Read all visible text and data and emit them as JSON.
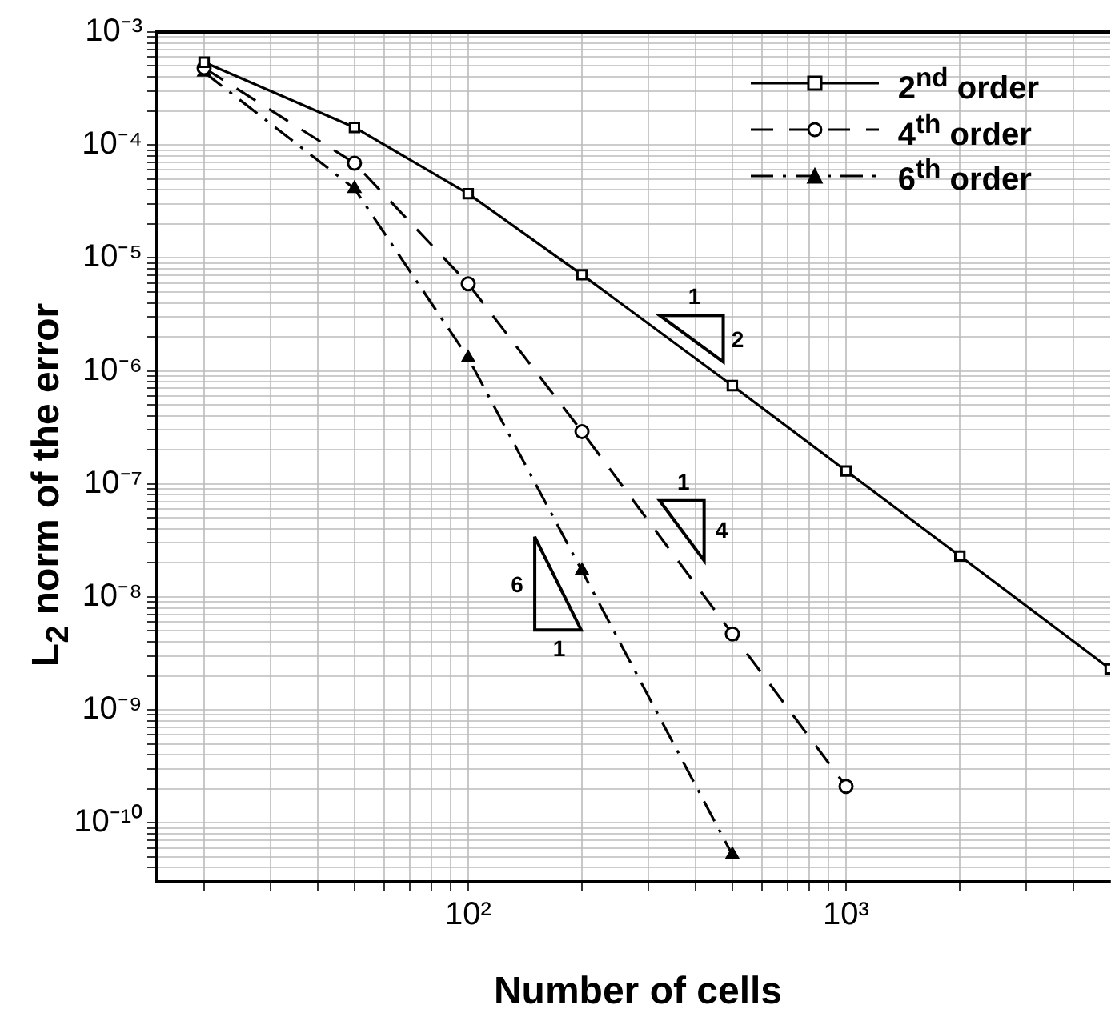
{
  "chart_data": {
    "type": "line",
    "xlabel": "Number of cells",
    "ylabel": "L$_{2}$ norm of the error",
    "x": [
      20,
      50,
      100,
      200,
      500,
      1000,
      2000,
      5000
    ],
    "series": [
      {
        "name": "2$^{nd}$ order",
        "color": "#000000",
        "marker": "square",
        "line_style": "solid",
        "values": [
          0.00054,
          0.000143,
          3.7e-05,
          7.1e-06,
          7.4e-07,
          1.3e-07,
          2.3e-08,
          2.3e-09
        ]
      },
      {
        "name": "4$^{th}$ order",
        "color": "#000000",
        "marker": "circle",
        "line_style": "dashed",
        "values": [
          0.00048,
          6.9e-05,
          5.9e-06,
          2.9e-07,
          4.7e-09,
          2.1e-10,
          null,
          null
        ]
      },
      {
        "name": "6$^{th}$ order",
        "color": "#000000",
        "marker": "triangle",
        "line_style": "dashdot",
        "values": [
          0.00044,
          4.1e-05,
          1.3e-06,
          1.7e-08,
          5.2e-11,
          null,
          null,
          null
        ]
      }
    ],
    "log": "xy",
    "grid": true,
    "legend": "top right",
    "xlim": [
      15,
      5000
    ],
    "ylim": [
      3e-11,
      0.001
    ],
    "xticks": [
      {
        "value": 20,
        "label": null
      },
      {
        "value": 30,
        "label": null
      },
      {
        "value": 40,
        "label": null
      },
      {
        "value": 50,
        "label": null
      },
      {
        "value": 60,
        "label": null
      },
      {
        "value": 70,
        "label": null
      },
      {
        "value": 80,
        "label": null
      },
      {
        "value": 90,
        "label": null
      },
      {
        "value": 100,
        "label": "10²"
      },
      {
        "value": 200,
        "label": null
      },
      {
        "value": 300,
        "label": null
      },
      {
        "value": 400,
        "label": null
      },
      {
        "value": 500,
        "label": null
      },
      {
        "value": 600,
        "label": null
      },
      {
        "value": 700,
        "label": null
      },
      {
        "value": 800,
        "label": null
      },
      {
        "value": 900,
        "label": null
      },
      {
        "value": 1000,
        "label": "10³"
      },
      {
        "value": 2000,
        "label": null
      },
      {
        "value": 3000,
        "label": null
      },
      {
        "value": 4000,
        "label": null
      }
    ],
    "yticks": [
      {
        "value": 4e-11,
        "label": null
      },
      {
        "value": 5e-11,
        "label": null
      },
      {
        "value": 6e-11,
        "label": null
      },
      {
        "value": 7e-11,
        "label": null
      },
      {
        "value": 8e-11,
        "label": null
      },
      {
        "value": 9e-11,
        "label": null
      },
      {
        "value": 1e-10,
        "label": "10⁻¹⁰"
      },
      {
        "value": 2e-10,
        "label": null
      },
      {
        "value": 3e-10,
        "label": null
      },
      {
        "value": 4e-10,
        "label": null
      },
      {
        "value": 5e-10,
        "label": null
      },
      {
        "value": 6e-10,
        "label": null
      },
      {
        "value": 7e-10,
        "label": null
      },
      {
        "value": 8e-10,
        "label": null
      },
      {
        "value": 9e-10,
        "label": null
      },
      {
        "value": 1e-09,
        "label": "10⁻⁹"
      },
      {
        "value": 2e-09,
        "label": null
      },
      {
        "value": 3e-09,
        "label": null
      },
      {
        "value": 4e-09,
        "label": null
      },
      {
        "value": 5e-09,
        "label": null
      },
      {
        "value": 6e-09,
        "label": null
      },
      {
        "value": 7e-09,
        "label": null
      },
      {
        "value": 8e-09,
        "label": null
      },
      {
        "value": 9e-09,
        "label": null
      },
      {
        "value": 1e-08,
        "label": "10⁻⁸"
      },
      {
        "value": 2e-08,
        "label": null
      },
      {
        "value": 3e-08,
        "label": null
      },
      {
        "value": 4e-08,
        "label": null
      },
      {
        "value": 5e-08,
        "label": null
      },
      {
        "value": 6e-08,
        "label": null
      },
      {
        "value": 7e-08,
        "label": null
      },
      {
        "value": 8e-08,
        "label": null
      },
      {
        "value": 9e-08,
        "label": null
      },
      {
        "value": 1e-07,
        "label": "10⁻⁷"
      },
      {
        "value": 2e-07,
        "label": null
      },
      {
        "value": 3e-07,
        "label": null
      },
      {
        "value": 4e-07,
        "label": null
      },
      {
        "value": 5e-07,
        "label": null
      },
      {
        "value": 6e-07,
        "label": null
      },
      {
        "value": 7e-07,
        "label": null
      },
      {
        "value": 8e-07,
        "label": null
      },
      {
        "value": 9e-07,
        "label": null
      },
      {
        "value": 1e-06,
        "label": "10⁻⁶"
      },
      {
        "value": 2e-06,
        "label": null
      },
      {
        "value": 3e-06,
        "label": null
      },
      {
        "value": 4e-06,
        "label": null
      },
      {
        "value": 5e-06,
        "label": null
      },
      {
        "value": 6e-06,
        "label": null
      },
      {
        "value": 7e-06,
        "label": null
      },
      {
        "value": 8e-06,
        "label": null
      },
      {
        "value": 9e-06,
        "label": null
      },
      {
        "value": 1e-05,
        "label": "10⁻⁵"
      },
      {
        "value": 2e-05,
        "label": null
      },
      {
        "value": 3e-05,
        "label": null
      },
      {
        "value": 4e-05,
        "label": null
      },
      {
        "value": 5e-05,
        "label": null
      },
      {
        "value": 6e-05,
        "label": null
      },
      {
        "value": 7e-05,
        "label": null
      },
      {
        "value": 8e-05,
        "label": null
      },
      {
        "value": 9e-05,
        "label": null
      },
      {
        "value": 0.0001,
        "label": "10⁻⁴"
      },
      {
        "value": 0.0002,
        "label": null
      },
      {
        "value": 0.0003,
        "label": null
      },
      {
        "value": 0.0004,
        "label": null
      },
      {
        "value": 0.0005,
        "label": null
      },
      {
        "value": 0.0006,
        "label": null
      },
      {
        "value": 0.0007,
        "label": null
      },
      {
        "value": 0.0008,
        "label": null
      },
      {
        "value": 0.0009,
        "label": null
      },
      {
        "value": 0.001,
        "label": "10⁻³"
      }
    ],
    "annotations": [
      "1",
      "2",
      "1",
      "4",
      "6",
      "1"
    ]
  }
}
